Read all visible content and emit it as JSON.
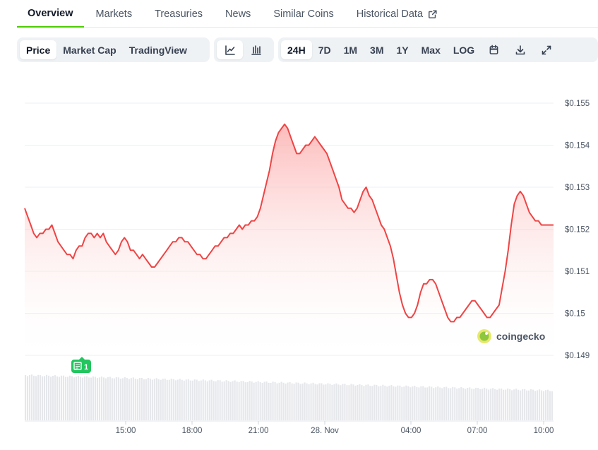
{
  "tabs": [
    {
      "label": "Overview",
      "active": true
    },
    {
      "label": "Markets"
    },
    {
      "label": "Treasuries"
    },
    {
      "label": "News"
    },
    {
      "label": "Similar Coins"
    },
    {
      "label": "Historical Data",
      "external": true
    }
  ],
  "toolbar": {
    "view_options": [
      "Price",
      "Market Cap",
      "TradingView"
    ],
    "selected_view": "Price",
    "chart_type_icons": [
      "line-chart-icon",
      "candlestick-chart-icon"
    ],
    "selected_chart_type": "line-chart-icon",
    "ranges": [
      "24H",
      "7D",
      "1M",
      "3M",
      "1Y",
      "Max",
      "LOG"
    ],
    "selected_range": "24H",
    "tool_icons": [
      "calendar-icon",
      "download-icon",
      "fullscreen-icon"
    ]
  },
  "watermark": "coingecko",
  "event_badge": {
    "count": "1",
    "color": "#22c55e"
  },
  "colors": {
    "line": "#ef4444",
    "fill_top": "#fca5a5",
    "accent": "#4bcc00"
  },
  "chart_data": {
    "type": "area",
    "title": "",
    "xlabel": "",
    "ylabel": "",
    "x_ticks": [
      "15:00",
      "18:00",
      "21:00",
      "28. Nov",
      "04:00",
      "07:00",
      "10:00"
    ],
    "y_ticks": [
      "$0.149",
      "$0.15",
      "$0.151",
      "$0.152",
      "$0.153",
      "$0.154",
      "$0.155"
    ],
    "ylim": [
      0.149,
      0.155
    ],
    "grid": true,
    "y_axis_side": "right",
    "series": [
      {
        "values": [
          0.1525,
          0.1523,
          0.1521,
          0.1519,
          0.1518,
          0.1519,
          0.1519,
          0.152,
          0.152,
          0.1521,
          0.1519,
          0.1517,
          0.1516,
          0.1515,
          0.1514,
          0.1514,
          0.1513,
          0.1515,
          0.1516,
          0.1516,
          0.1518,
          0.1519,
          0.1519,
          0.1518,
          0.1519,
          0.1518,
          0.1519,
          0.1517,
          0.1516,
          0.1515,
          0.1514,
          0.1515,
          0.1517,
          0.1518,
          0.1517,
          0.1515,
          0.1515,
          0.1514,
          0.1513,
          0.1514,
          0.1513,
          0.1512,
          0.1511,
          0.1511,
          0.1512,
          0.1513,
          0.1514,
          0.1515,
          0.1516,
          0.1517,
          0.1517,
          0.1518,
          0.1518,
          0.1517,
          0.1517,
          0.1516,
          0.1515,
          0.1514,
          0.1514,
          0.1513,
          0.1513,
          0.1514,
          0.1515,
          0.1516,
          0.1516,
          0.1517,
          0.1518,
          0.1518,
          0.1519,
          0.1519,
          0.152,
          0.1521,
          0.152,
          0.1521,
          0.1521,
          0.1522,
          0.1522,
          0.1523,
          0.1525,
          0.1528,
          0.1531,
          0.1534,
          0.1538,
          0.1541,
          0.1543,
          0.1544,
          0.1545,
          0.1544,
          0.1542,
          0.154,
          0.1538,
          0.1538,
          0.1539,
          0.154,
          0.154,
          0.1541,
          0.1542,
          0.1541,
          0.154,
          0.1539,
          0.1538,
          0.1536,
          0.1534,
          0.1532,
          0.153,
          0.1527,
          0.1526,
          0.1525,
          0.1525,
          0.1524,
          0.1525,
          0.1527,
          0.1529,
          0.153,
          0.1528,
          0.1527,
          0.1525,
          0.1523,
          0.1521,
          0.152,
          0.1518,
          0.1516,
          0.1513,
          0.1509,
          0.1505,
          0.1502,
          0.15,
          0.1499,
          0.1499,
          0.15,
          0.1502,
          0.1505,
          0.1507,
          0.1507,
          0.1508,
          0.1508,
          0.1507,
          0.1505,
          0.1503,
          0.1501,
          0.1499,
          0.1498,
          0.1498,
          0.1499,
          0.1499,
          0.15,
          0.1501,
          0.1502,
          0.1503,
          0.1503,
          0.1502,
          0.1501,
          0.15,
          0.1499,
          0.1499,
          0.15,
          0.1501,
          0.1502,
          0.1506,
          0.151,
          0.1515,
          0.1521,
          0.1526,
          0.1528,
          0.1529,
          0.1528,
          0.1526,
          0.1524,
          0.1523,
          0.1522,
          0.1522,
          0.1521,
          0.1521,
          0.1521,
          0.1521,
          0.1521
        ]
      }
    ]
  }
}
